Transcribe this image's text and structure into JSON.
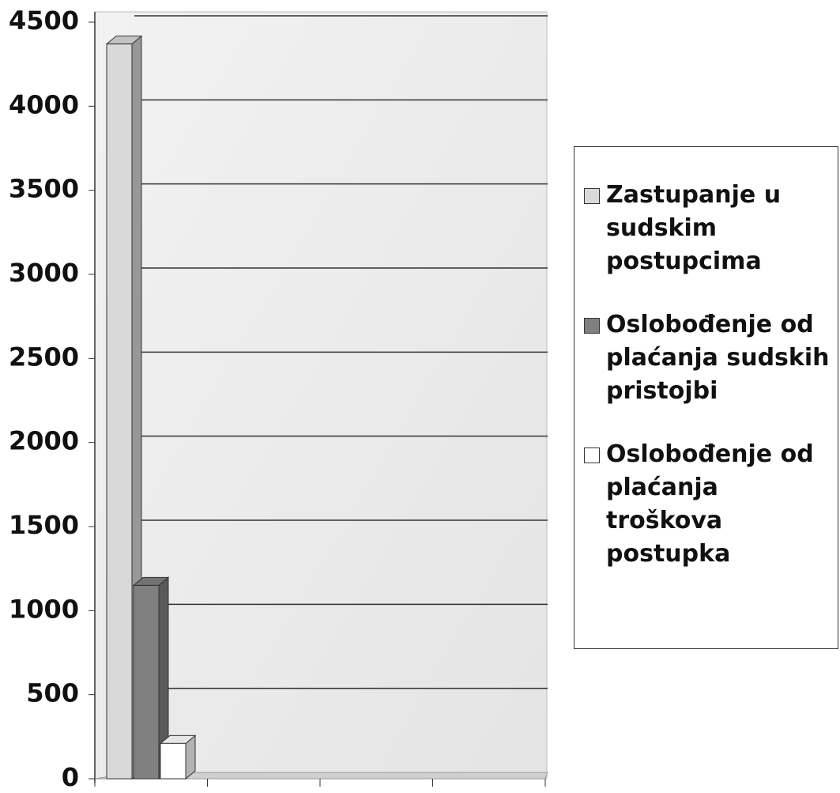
{
  "chart_data": {
    "type": "bar3d",
    "categories": [
      null,
      null,
      null,
      null
    ],
    "series": [
      {
        "name": "Zastupanje u sudskim postupcima",
        "color": "#d9d9d9",
        "values": [
          4370,
          null,
          null,
          null
        ]
      },
      {
        "name": "Oslobođenje od plaćanja sudskih pristojbi",
        "color": "#808080",
        "values": [
          1150,
          null,
          null,
          null
        ]
      },
      {
        "name": "Oslobođenje od plaćanja troškova postupka",
        "color": "#ffffff",
        "values": [
          210,
          null,
          null,
          null
        ]
      }
    ],
    "ylim": [
      0,
      4500
    ],
    "yticks": [
      0,
      500,
      1000,
      1500,
      2000,
      2500,
      3000,
      3500,
      4000,
      4500
    ],
    "grid": true,
    "legend": "right"
  }
}
